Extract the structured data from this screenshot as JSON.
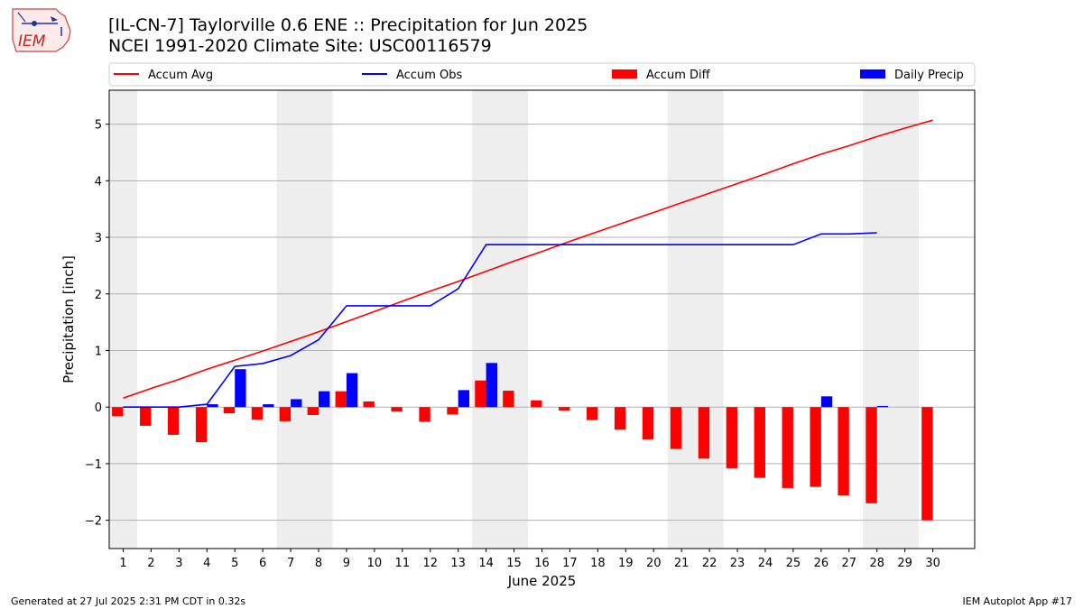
{
  "logo": {
    "text": "IEM"
  },
  "header": {
    "title": "[IL-CN-7] Taylorville 0.6 ENE :: Precipitation for Jun 2025",
    "subtitle": "NCEI 1991-2020 Climate Site: USC00116579"
  },
  "footer": {
    "left": "Generated at 27 Jul 2025 2:31 PM CDT in 0.32s",
    "right": "IEM Autoplot App #17"
  },
  "chart_data": {
    "type": "bar",
    "xlabel": "June 2025",
    "ylabel": "Precipitation [inch]",
    "xlim": [
      0.5,
      31.5
    ],
    "ylim": [
      -2.5,
      5.6
    ],
    "yticks": [
      -2,
      -1,
      0,
      1,
      2,
      3,
      4,
      5
    ],
    "grid": true,
    "legend_position": "top",
    "weekend_shading": [
      [
        0.5,
        1.5
      ],
      [
        6.5,
        8.5
      ],
      [
        13.5,
        15.5
      ],
      [
        20.5,
        22.5
      ],
      [
        27.5,
        29.5
      ]
    ],
    "x": [
      1,
      2,
      3,
      4,
      5,
      6,
      7,
      8,
      9,
      10,
      11,
      12,
      13,
      14,
      15,
      16,
      17,
      18,
      19,
      20,
      21,
      22,
      23,
      24,
      25,
      26,
      27,
      28,
      29,
      30
    ],
    "series": [
      {
        "name": "Accum Avg",
        "kind": "line",
        "color": "#ff0000",
        "values": [
          0.16,
          0.33,
          0.49,
          0.67,
          0.83,
          0.99,
          1.16,
          1.33,
          1.51,
          1.69,
          1.87,
          2.05,
          2.22,
          2.4,
          2.58,
          2.75,
          2.93,
          3.1,
          3.27,
          3.44,
          3.61,
          3.78,
          3.95,
          4.12,
          4.3,
          4.47,
          4.62,
          4.78,
          4.93,
          5.07
        ]
      },
      {
        "name": "Accum Obs",
        "kind": "line",
        "color": "#0000ff",
        "values": [
          0.0,
          0.0,
          0.0,
          0.05,
          0.72,
          0.77,
          0.91,
          1.19,
          1.79,
          1.79,
          1.79,
          1.79,
          2.09,
          2.87,
          2.87,
          2.87,
          2.87,
          2.87,
          2.87,
          2.87,
          2.87,
          2.87,
          2.87,
          2.87,
          2.87,
          3.06,
          3.06,
          3.08,
          null,
          null
        ]
      },
      {
        "name": "Accum Diff",
        "kind": "bar",
        "color": "#ff0000",
        "offset": -0.2,
        "values": [
          -0.16,
          -0.33,
          -0.49,
          -0.62,
          -0.11,
          -0.22,
          -0.25,
          -0.14,
          0.28,
          0.1,
          -0.08,
          -0.26,
          -0.13,
          0.47,
          0.29,
          0.12,
          -0.06,
          -0.23,
          -0.4,
          -0.57,
          -0.74,
          -0.91,
          -1.08,
          -1.25,
          -1.43,
          -1.41,
          -1.56,
          -1.7,
          null,
          -2.0
        ]
      },
      {
        "name": "Daily Precip",
        "kind": "bar",
        "color": "#0000ff",
        "offset": 0.2,
        "values": [
          0.0,
          0.0,
          0.0,
          0.05,
          0.67,
          0.05,
          0.14,
          0.28,
          0.6,
          0.0,
          0.0,
          0.0,
          0.3,
          0.78,
          0.0,
          0.0,
          0.0,
          0.0,
          0.0,
          0.0,
          0.0,
          0.0,
          0.0,
          0.0,
          0.0,
          0.19,
          0.0,
          0.02,
          null,
          null
        ]
      }
    ]
  }
}
